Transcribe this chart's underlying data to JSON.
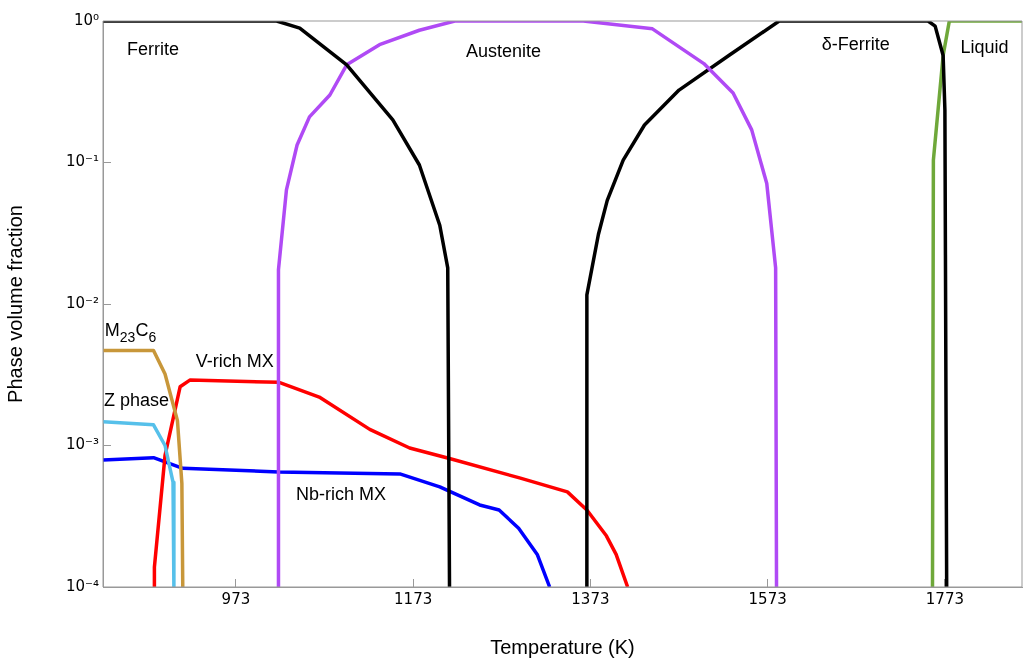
{
  "chart_data": {
    "type": "line",
    "xlabel": "Temperature (K)",
    "ylabel": "Phase volume fraction",
    "log": "y",
    "grid": false,
    "legend": false,
    "marker": "none",
    "line_style": "solid",
    "xlim": [
      823,
      1860
    ],
    "xticks": [
      973,
      1173,
      1373,
      1573,
      1773
    ],
    "ylim": [
      0.0001,
      1
    ],
    "yticks": [
      {
        "value": 0.0001,
        "label": "10⁻⁴"
      },
      {
        "value": 0.001,
        "label": "10⁻³"
      },
      {
        "value": 0.01,
        "label": "10⁻²"
      },
      {
        "value": 0.1,
        "label": "10⁻¹"
      },
      {
        "value": 1,
        "label": "10⁰"
      }
    ],
    "series": [
      {
        "color": "#000000",
        "x": [
          823,
          1019,
          1045,
          1098,
          1150,
          1180,
          1203,
          1212,
          1214
        ],
        "values": [
          1,
          1,
          0.89,
          0.49,
          0.2,
          0.096,
          0.036,
          0.018,
          0.0001
        ]
      },
      {
        "color": "#b04af5",
        "x": [
          1021,
          1021,
          1030,
          1042,
          1056,
          1079,
          1098,
          1135,
          1180,
          1220,
          1365,
          1443,
          1501,
          1534,
          1555,
          1572,
          1582,
          1583
        ],
        "values": [
          0.0001,
          0.0175,
          0.064,
          0.133,
          0.21,
          0.3,
          0.49,
          0.68,
          0.86,
          1,
          1,
          0.88,
          0.5,
          0.31,
          0.17,
          0.071,
          0.018,
          0.0001
        ]
      },
      {
        "color": "#000000",
        "x": [
          1369,
          1369,
          1382,
          1392,
          1410,
          1434,
          1473,
          1530,
          1586,
          1754,
          1762,
          1771,
          1773,
          1775
        ],
        "values": [
          0.0001,
          0.0116,
          0.031,
          0.054,
          0.104,
          0.184,
          0.325,
          0.575,
          1,
          1,
          0.92,
          0.57,
          0.235,
          0.0001
        ]
      },
      {
        "color": "#6fa83a",
        "x": [
          1759,
          1760,
          1771,
          1778,
          1860
        ],
        "values": [
          0.0001,
          0.104,
          0.57,
          1,
          1
        ]
      },
      {
        "color": "#c8973a",
        "x": [
          823,
          880,
          893,
          907,
          912,
          913
        ],
        "values": [
          0.0047,
          0.0047,
          0.0032,
          0.0015,
          0.00054,
          0.0001
        ]
      },
      {
        "color": "#56c0ea",
        "x": [
          823,
          880,
          893,
          902,
          903
        ],
        "values": [
          0.00147,
          0.0014,
          0.001,
          0.00055,
          0.0001
        ]
      },
      {
        "color": "#ff0000",
        "x": [
          881,
          881,
          893,
          910,
          921,
          1021,
          1067,
          1124,
          1169,
          1214,
          1293,
          1347,
          1369,
          1391,
          1402,
          1415
        ],
        "values": [
          0.0001,
          0.000138,
          0.00085,
          0.0026,
          0.0029,
          0.0028,
          0.0022,
          0.0013,
          0.00096,
          0.00081,
          0.00059,
          0.00047,
          0.00035,
          0.00023,
          0.00017,
          0.0001
        ]
      },
      {
        "color": "#0000ff",
        "x": [
          823,
          880,
          913,
          1021,
          1158,
          1203,
          1248,
          1270,
          1292,
          1313,
          1327
        ],
        "values": [
          0.00079,
          0.00082,
          0.00069,
          0.00065,
          0.00063,
          0.00051,
          0.00038,
          0.00035,
          0.00026,
          0.00017,
          0.0001
        ]
      }
    ],
    "annotations": [
      "Ferrite",
      "Austenite",
      "δ-Ferrite",
      "Liquid",
      "M$_{23}$C$_{6}$",
      "V-rich MX",
      "Z phase",
      "Nb-rich MX"
    ]
  }
}
